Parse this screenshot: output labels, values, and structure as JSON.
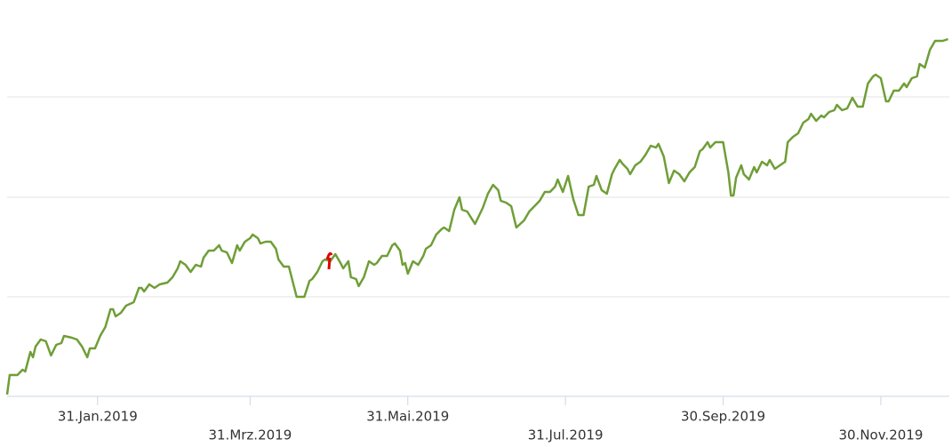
{
  "chart_data": {
    "type": "line",
    "x": [
      -4,
      -3,
      0,
      2,
      3,
      5,
      6,
      7,
      9,
      11,
      13,
      15,
      17,
      18,
      21,
      23,
      25,
      27,
      28,
      30,
      32,
      34,
      36,
      37,
      38,
      40,
      42,
      45,
      47,
      48,
      49,
      51,
      53,
      55,
      58,
      60,
      62,
      63,
      65,
      67,
      69,
      71,
      72,
      74,
      76,
      78,
      79,
      81,
      83,
      85,
      86,
      88,
      90,
      91,
      93,
      94,
      96,
      98,
      100,
      101,
      103,
      105,
      108,
      111,
      113,
      114,
      116,
      118,
      119,
      121,
      123,
      125,
      126,
      128,
      129,
      131,
      132,
      134,
      136,
      138,
      139,
      141,
      143,
      145,
      146,
      148,
      149,
      150,
      151,
      153,
      155,
      157,
      158,
      160,
      162,
      164,
      165,
      167,
      169,
      171,
      172,
      174,
      177,
      178,
      180,
      182,
      184,
      186,
      187,
      189,
      191,
      193,
      196,
      198,
      200,
      202,
      204,
      206,
      208,
      209,
      211,
      213,
      215,
      217,
      219,
      221,
      223,
      224,
      226,
      228,
      230,
      231,
      233,
      234,
      236,
      237,
      239,
      241,
      243,
      245,
      247,
      248,
      250,
      252,
      254,
      256,
      258,
      260,
      262,
      264,
      265,
      267,
      268,
      270,
      273,
      275,
      276,
      277,
      278,
      280,
      281,
      283,
      285,
      286,
      288,
      290,
      291,
      293,
      295,
      297,
      298,
      300,
      302,
      304,
      306,
      307,
      309,
      311,
      312,
      314,
      316,
      317,
      319,
      321,
      323,
      325,
      327,
      329,
      331,
      332,
      334,
      336,
      337,
      339,
      341,
      343,
      344,
      346,
      348,
      349,
      351,
      353,
      355,
      358,
      360
    ],
    "series": [
      {
        "color": "#6f9e37",
        "values": [
          2,
          24,
          24,
          30,
          28,
          50,
          44,
          56,
          64,
          62,
          46,
          58,
          60,
          68,
          66,
          64,
          56,
          44,
          54,
          54,
          68,
          78,
          98,
          98,
          90,
          94,
          102,
          106,
          122,
          122,
          118,
          126,
          122,
          126,
          128,
          134,
          144,
          152,
          148,
          140,
          148,
          146,
          156,
          164,
          164,
          170,
          164,
          162,
          150,
          170,
          164,
          174,
          178,
          182,
          178,
          172,
          174,
          174,
          166,
          154,
          146,
          146,
          112,
          112,
          130,
          132,
          140,
          152,
          154,
          152,
          160,
          150,
          144,
          152,
          134,
          132,
          124,
          134,
          152,
          148,
          150,
          158,
          158,
          170,
          172,
          164,
          148,
          150,
          138,
          152,
          148,
          158,
          166,
          170,
          182,
          188,
          190,
          186,
          210,
          224,
          210,
          208,
          194,
          200,
          212,
          228,
          238,
          232,
          220,
          218,
          214,
          190,
          198,
          208,
          214,
          220,
          230,
          230,
          236,
          244,
          230,
          248,
          222,
          204,
          204,
          236,
          238,
          248,
          232,
          228,
          250,
          256,
          266,
          262,
          256,
          250,
          260,
          264,
          272,
          282,
          280,
          284,
          270,
          240,
          254,
          250,
          242,
          252,
          258,
          276,
          278,
          286,
          280,
          286,
          286,
          252,
          226,
          226,
          246,
          260,
          250,
          244,
          258,
          252,
          264,
          260,
          266,
          256,
          260,
          264,
          286,
          292,
          296,
          308,
          312,
          318,
          310,
          316,
          314,
          320,
          322,
          328,
          322,
          324,
          336,
          326,
          326,
          352,
          360,
          362,
          358,
          332,
          332,
          344,
          344,
          352,
          348,
          358,
          360,
          374,
          370,
          390,
          400,
          400,
          402
        ]
      }
    ],
    "xlim": [
      -4,
      360.5
    ],
    "xticks": [
      {
        "value": 31,
        "label": "31.Jan.2019"
      },
      {
        "value": 90,
        "label": "31.Mrz.2019"
      },
      {
        "value": 151,
        "label": "31.Mai.2019"
      },
      {
        "value": 212,
        "label": "31.Jul.2019"
      },
      {
        "value": 273,
        "label": "30.Sep.2019"
      },
      {
        "value": 334,
        "label": "30.Nov.2019"
      }
    ],
    "ylim": [
      0,
      448
    ],
    "yticks": [
      112,
      224,
      337
    ],
    "grid": true
  }
}
